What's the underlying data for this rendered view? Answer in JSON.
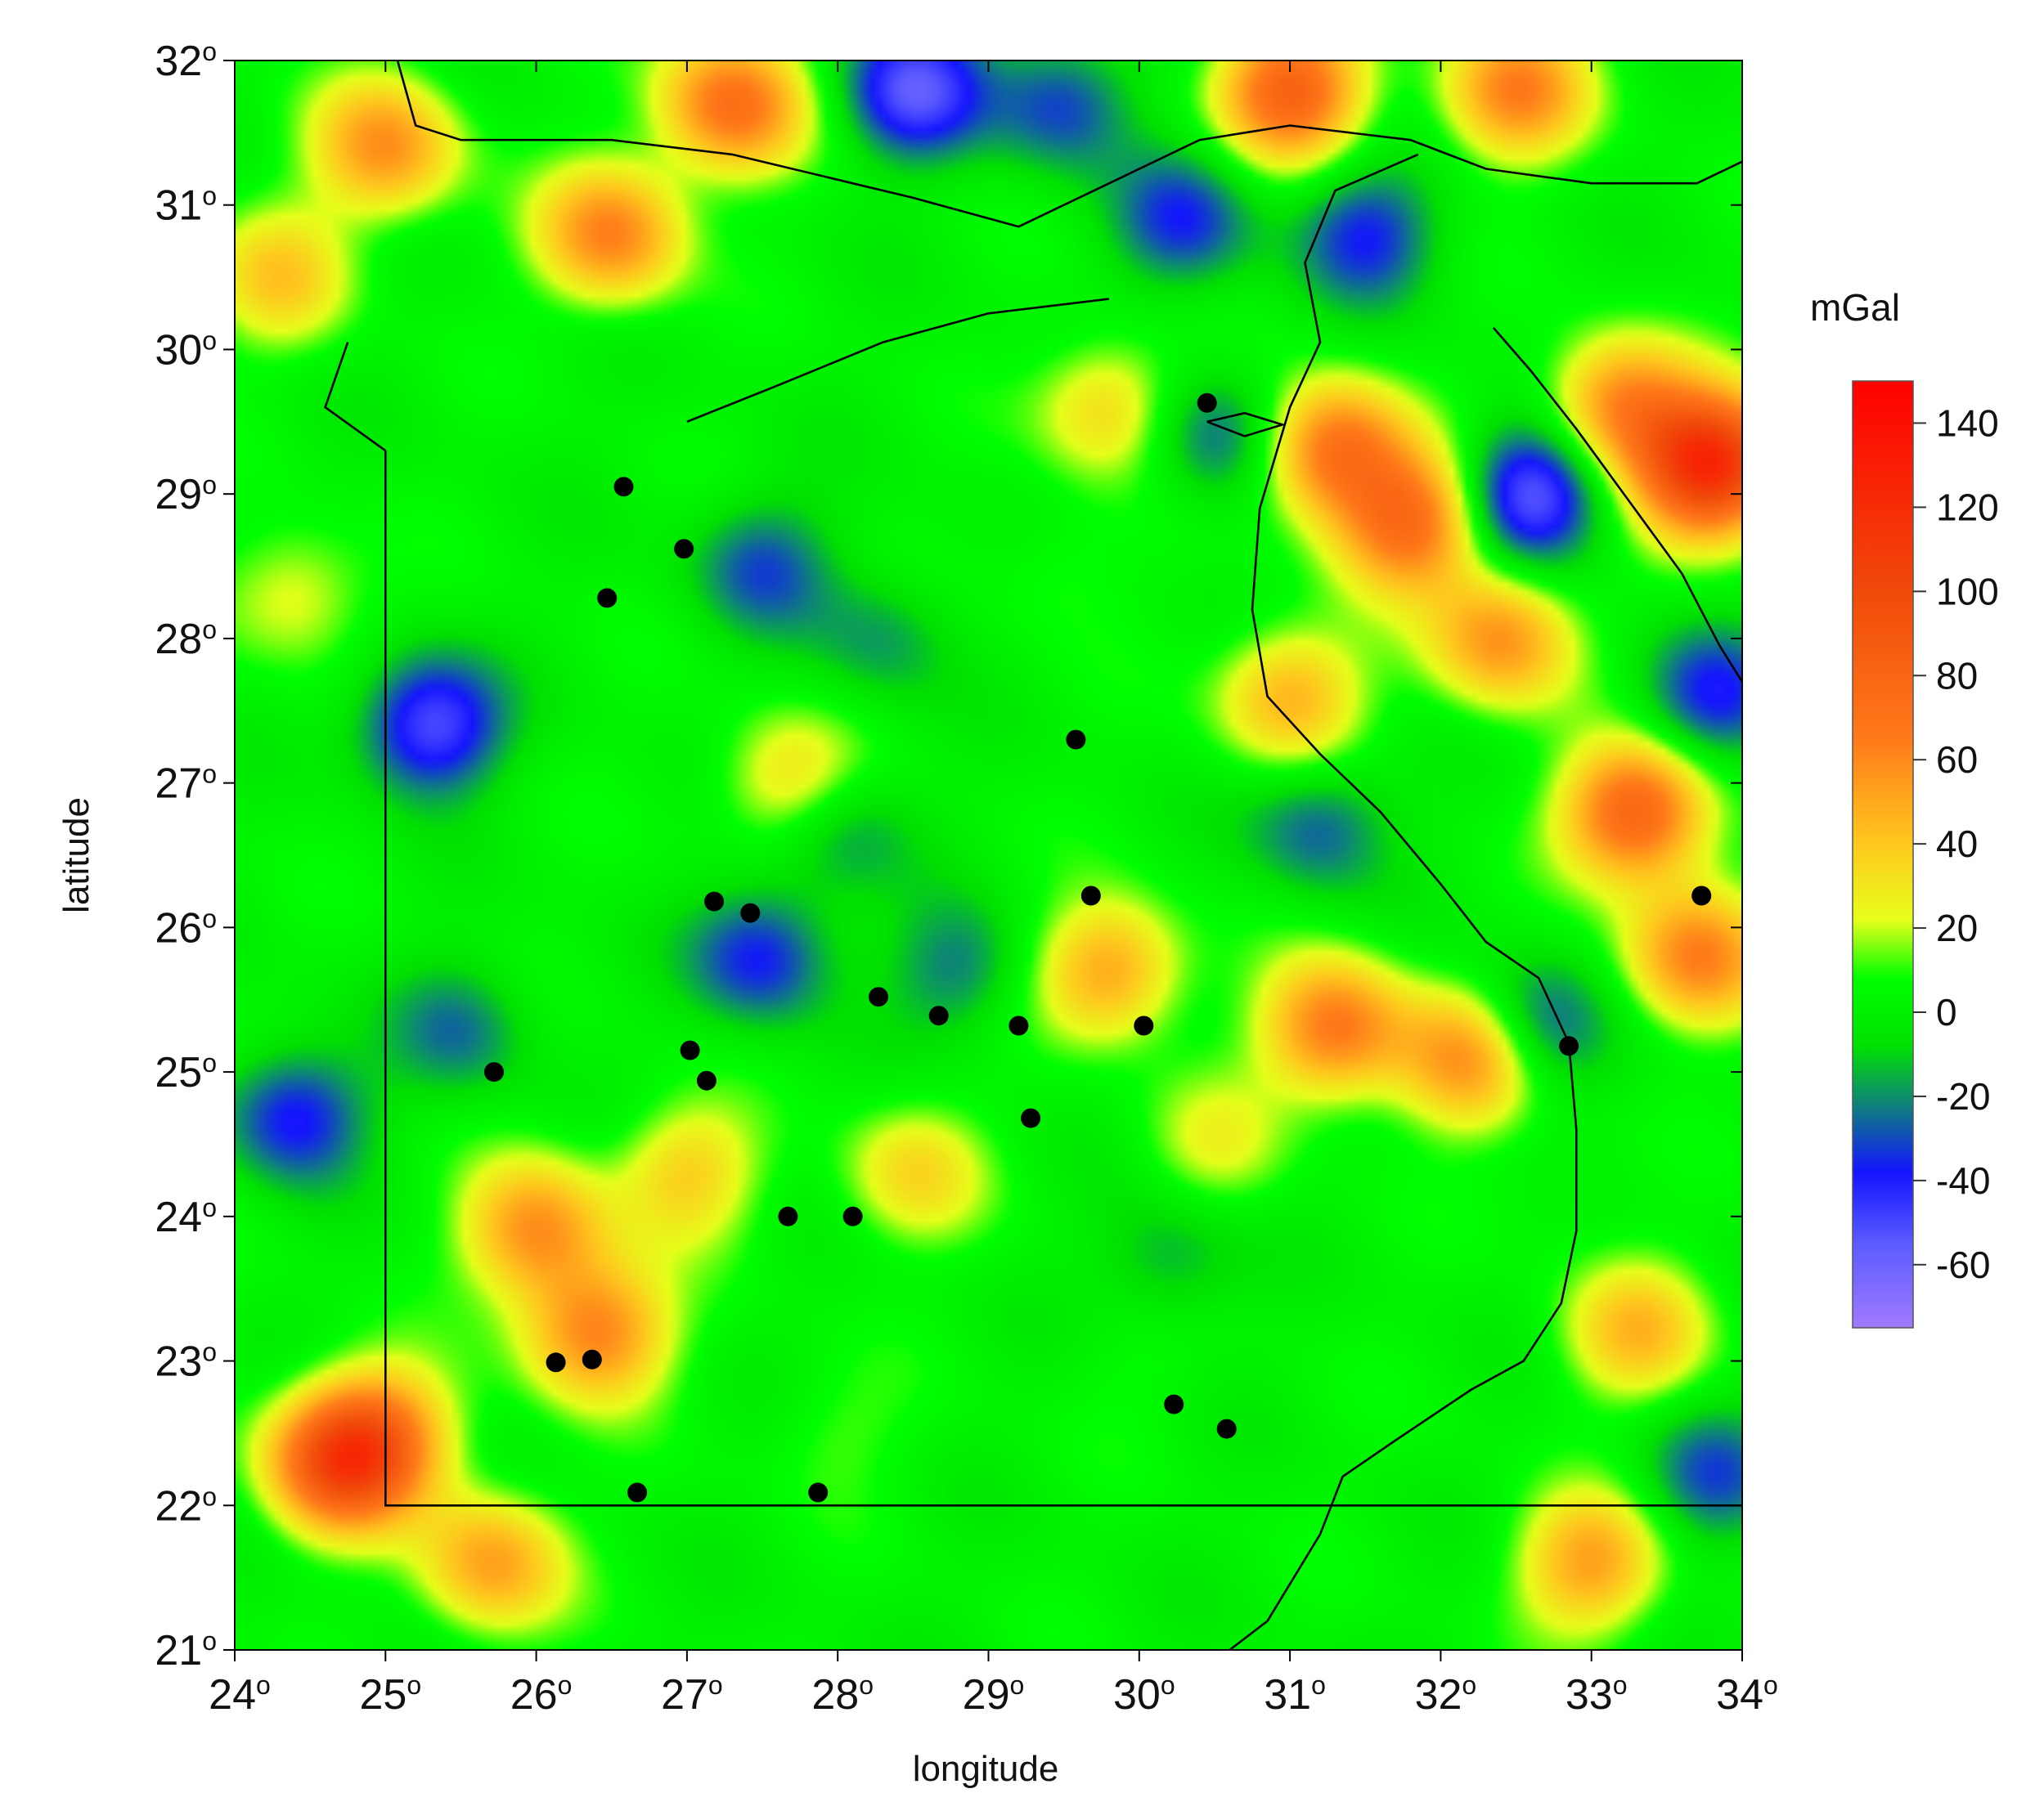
{
  "chart_data": {
    "type": "heatmap",
    "title": "",
    "xlabel": "longitude",
    "ylabel": "latitude",
    "xlim": [
      24,
      34
    ],
    "ylim": [
      21,
      32
    ],
    "x_ticks": [
      24,
      25,
      26,
      27,
      28,
      29,
      30,
      31,
      32,
      33,
      34
    ],
    "y_ticks": [
      21,
      22,
      23,
      24,
      25,
      26,
      27,
      28,
      29,
      30,
      31,
      32
    ],
    "tick_suffix": "o",
    "colorbar": {
      "title": "mGal",
      "range": [
        -75,
        150
      ],
      "ticks": [
        140,
        120,
        100,
        80,
        60,
        40,
        20,
        0,
        -20,
        -40,
        -60
      ],
      "colors": [
        {
          "value": -75,
          "color": "#a07aff"
        },
        {
          "value": -55,
          "color": "#5b5bff"
        },
        {
          "value": -38,
          "color": "#1414ff"
        },
        {
          "value": -20,
          "color": "#0d8f6a"
        },
        {
          "value": -8,
          "color": "#00e000"
        },
        {
          "value": 8,
          "color": "#00ff00"
        },
        {
          "value": 22,
          "color": "#e6ff1a"
        },
        {
          "value": 40,
          "color": "#ffc81e"
        },
        {
          "value": 65,
          "color": "#ff7a1a"
        },
        {
          "value": 100,
          "color": "#f04a0a"
        },
        {
          "value": 150,
          "color": "#ff0000"
        }
      ]
    },
    "anomaly_field": [
      {
        "lon": 25.0,
        "lat": 31.4,
        "value": 55
      },
      {
        "lon": 26.5,
        "lat": 30.8,
        "value": 60
      },
      {
        "lon": 27.3,
        "lat": 31.7,
        "value": 70
      },
      {
        "lon": 28.5,
        "lat": 31.8,
        "value": -55
      },
      {
        "lon": 29.5,
        "lat": 31.7,
        "value": -35
      },
      {
        "lon": 31.0,
        "lat": 31.8,
        "value": 80
      },
      {
        "lon": 32.5,
        "lat": 31.8,
        "value": 60
      },
      {
        "lon": 24.3,
        "lat": 30.5,
        "value": 35
      },
      {
        "lon": 30.3,
        "lat": 30.9,
        "value": -35
      },
      {
        "lon": 31.5,
        "lat": 30.8,
        "value": -38
      },
      {
        "lon": 29.8,
        "lat": 29.6,
        "value": 35
      },
      {
        "lon": 30.5,
        "lat": 29.4,
        "value": -30
      },
      {
        "lon": 31.3,
        "lat": 29.3,
        "value": 70
      },
      {
        "lon": 32.6,
        "lat": 29.0,
        "value": -60
      },
      {
        "lon": 33.8,
        "lat": 29.2,
        "value": 120
      },
      {
        "lon": 33.2,
        "lat": 29.6,
        "value": 60
      },
      {
        "lon": 25.3,
        "lat": 27.4,
        "value": -55
      },
      {
        "lon": 24.4,
        "lat": 28.3,
        "value": 25
      },
      {
        "lon": 27.5,
        "lat": 28.5,
        "value": -30
      },
      {
        "lon": 28.3,
        "lat": 28.0,
        "value": -20
      },
      {
        "lon": 31.0,
        "lat": 27.6,
        "value": 45
      },
      {
        "lon": 31.8,
        "lat": 28.8,
        "value": 70
      },
      {
        "lon": 32.4,
        "lat": 28.0,
        "value": 55
      },
      {
        "lon": 33.3,
        "lat": 26.8,
        "value": 80
      },
      {
        "lon": 33.8,
        "lat": 27.6,
        "value": -38
      },
      {
        "lon": 27.7,
        "lat": 27.0,
        "value": 35
      },
      {
        "lon": 28.0,
        "lat": 26.7,
        "value": -25
      },
      {
        "lon": 27.5,
        "lat": 25.8,
        "value": -40
      },
      {
        "lon": 28.8,
        "lat": 25.7,
        "value": -25
      },
      {
        "lon": 29.8,
        "lat": 25.7,
        "value": 50
      },
      {
        "lon": 31.3,
        "lat": 25.3,
        "value": 65
      },
      {
        "lon": 32.2,
        "lat": 25.1,
        "value": 60
      },
      {
        "lon": 32.6,
        "lat": 25.3,
        "value": -38
      },
      {
        "lon": 31.2,
        "lat": 26.7,
        "value": -30
      },
      {
        "lon": 33.7,
        "lat": 25.8,
        "value": 60
      },
      {
        "lon": 24.4,
        "lat": 24.7,
        "value": -42
      },
      {
        "lon": 25.5,
        "lat": 25.3,
        "value": -25
      },
      {
        "lon": 26.0,
        "lat": 23.9,
        "value": 55
      },
      {
        "lon": 26.4,
        "lat": 23.2,
        "value": 60
      },
      {
        "lon": 27.0,
        "lat": 24.3,
        "value": 35
      },
      {
        "lon": 28.5,
        "lat": 24.3,
        "value": 30
      },
      {
        "lon": 30.5,
        "lat": 24.5,
        "value": 20
      },
      {
        "lon": 32.8,
        "lat": 24.2,
        "value": 5
      },
      {
        "lon": 33.3,
        "lat": 23.2,
        "value": 40
      },
      {
        "lon": 25.0,
        "lat": 22.5,
        "value": 45
      },
      {
        "lon": 24.7,
        "lat": 22.3,
        "value": 90
      },
      {
        "lon": 25.7,
        "lat": 21.6,
        "value": 50
      },
      {
        "lon": 28.0,
        "lat": 22.5,
        "value": 10
      },
      {
        "lon": 30.0,
        "lat": 23.0,
        "value": 5
      },
      {
        "lon": 33.0,
        "lat": 21.6,
        "value": 50
      },
      {
        "lon": 33.8,
        "lat": 22.2,
        "value": -30
      },
      {
        "lon": 29.5,
        "lat": 28.5,
        "value": 10
      },
      {
        "lon": 30.2,
        "lat": 23.7,
        "value": -20
      }
    ],
    "stations": [
      {
        "lon": 30.45,
        "lat": 29.63
      },
      {
        "lon": 26.58,
        "lat": 29.05
      },
      {
        "lon": 26.98,
        "lat": 28.62
      },
      {
        "lon": 26.47,
        "lat": 28.28
      },
      {
        "lon": 29.58,
        "lat": 27.3
      },
      {
        "lon": 29.68,
        "lat": 26.22
      },
      {
        "lon": 27.18,
        "lat": 26.18
      },
      {
        "lon": 27.42,
        "lat": 26.1
      },
      {
        "lon": 33.73,
        "lat": 26.22
      },
      {
        "lon": 28.27,
        "lat": 25.52
      },
      {
        "lon": 28.67,
        "lat": 25.39
      },
      {
        "lon": 29.2,
        "lat": 25.32
      },
      {
        "lon": 30.03,
        "lat": 25.32
      },
      {
        "lon": 27.02,
        "lat": 25.15
      },
      {
        "lon": 27.13,
        "lat": 24.94
      },
      {
        "lon": 25.72,
        "lat": 25.0
      },
      {
        "lon": 32.85,
        "lat": 25.18
      },
      {
        "lon": 29.28,
        "lat": 24.68
      },
      {
        "lon": 27.67,
        "lat": 24.0
      },
      {
        "lon": 28.1,
        "lat": 24.0
      },
      {
        "lon": 26.13,
        "lat": 22.99
      },
      {
        "lon": 26.37,
        "lat": 23.01
      },
      {
        "lon": 30.23,
        "lat": 22.7
      },
      {
        "lon": 30.58,
        "lat": 22.53
      },
      {
        "lon": 26.67,
        "lat": 22.09
      },
      {
        "lon": 27.87,
        "lat": 22.09
      }
    ],
    "border": {
      "lines": [
        [
          [
            25,
            29.3
          ],
          [
            25,
            22
          ],
          [
            34,
            22
          ]
        ],
        [
          [
            24.75,
            30.05
          ],
          [
            24.6,
            29.6
          ],
          [
            25.0,
            29.3
          ]
        ],
        [
          [
            25.08,
            32
          ],
          [
            25.2,
            31.55
          ],
          [
            25.5,
            31.45
          ],
          [
            26.5,
            31.45
          ],
          [
            27.3,
            31.35
          ],
          [
            28.5,
            31.05
          ],
          [
            29.2,
            30.85
          ],
          [
            29.9,
            31.2
          ],
          [
            30.4,
            31.45
          ],
          [
            31.0,
            31.55
          ],
          [
            31.8,
            31.45
          ],
          [
            32.3,
            31.25
          ],
          [
            33.0,
            31.15
          ],
          [
            33.7,
            31.15
          ],
          [
            34.0,
            31.3
          ]
        ]
      ]
    },
    "river_nile": [
      [
        31.85,
        31.35
      ],
      [
        31.3,
        31.1
      ],
      [
        31.1,
        30.6
      ],
      [
        31.2,
        30.05
      ],
      [
        31.0,
        29.6
      ],
      [
        30.8,
        28.9
      ],
      [
        30.75,
        28.2
      ],
      [
        30.85,
        27.6
      ],
      [
        31.2,
        27.2
      ],
      [
        31.6,
        26.8
      ],
      [
        32.0,
        26.3
      ],
      [
        32.3,
        25.9
      ],
      [
        32.65,
        25.65
      ],
      [
        32.85,
        25.2
      ],
      [
        32.9,
        24.6
      ],
      [
        32.9,
        23.9
      ],
      [
        32.8,
        23.4
      ],
      [
        32.55,
        23.0
      ],
      [
        32.2,
        22.8
      ],
      [
        31.7,
        22.45
      ],
      [
        31.35,
        22.2
      ],
      [
        31.2,
        21.8
      ],
      [
        30.85,
        21.2
      ],
      [
        30.6,
        21.0
      ]
    ],
    "coast_red_sea": [
      [
        32.35,
        30.15
      ],
      [
        32.6,
        29.85
      ],
      [
        32.9,
        29.45
      ],
      [
        33.25,
        28.95
      ],
      [
        33.6,
        28.45
      ],
      [
        33.85,
        27.95
      ],
      [
        34.0,
        27.7
      ]
    ],
    "lake_outline": [
      [
        30.45,
        29.5
      ],
      [
        30.7,
        29.4
      ],
      [
        30.95,
        29.48
      ],
      [
        30.7,
        29.56
      ],
      [
        30.45,
        29.5
      ]
    ],
    "qattara_outline": [
      [
        27.0,
        29.5
      ],
      [
        27.6,
        29.75
      ],
      [
        28.3,
        30.05
      ],
      [
        29.0,
        30.25
      ],
      [
        29.8,
        30.35
      ]
    ]
  }
}
